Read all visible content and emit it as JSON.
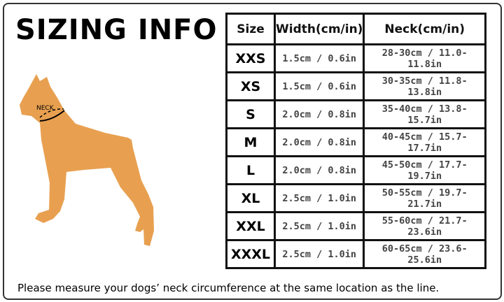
{
  "title": "SIZING INFO",
  "dog_label": "NECK",
  "dog_color": "#E8A050",
  "table": {
    "headers": [
      "Size",
      "Width(cm/in)",
      "Neck(cm/in)"
    ],
    "rows": [
      {
        "size": "XXS",
        "width": "1.5cm / 0.6in",
        "neck": "28-30cm / 11.0-11.8in"
      },
      {
        "size": "XS",
        "width": "1.5cm / 0.6in",
        "neck": "30-35cm / 11.8-13.8in"
      },
      {
        "size": "S",
        "width": "2.0cm / 0.8in",
        "neck": "35-40cm / 13.8-15.7in"
      },
      {
        "size": "M",
        "width": "2.0cm / 0.8in",
        "neck": "40-45cm / 15.7-17.7in"
      },
      {
        "size": "L",
        "width": "2.0cm / 0.8in",
        "neck": "45-50cm / 17.7-19.7in"
      },
      {
        "size": "XL",
        "width": "2.5cm / 1.0in",
        "neck": "50-55cm / 19.7-21.7in"
      },
      {
        "size": "XXL",
        "width": "2.5cm / 1.0in",
        "neck": "55-60cm / 21.7-23.6in"
      },
      {
        "size": "XXXL",
        "width": "2.5cm / 1.0in",
        "neck": "60-65cm / 23.6-25.6in"
      }
    ]
  },
  "footer": "Please measure your dogs’  neck circumference at the same location as the line."
}
